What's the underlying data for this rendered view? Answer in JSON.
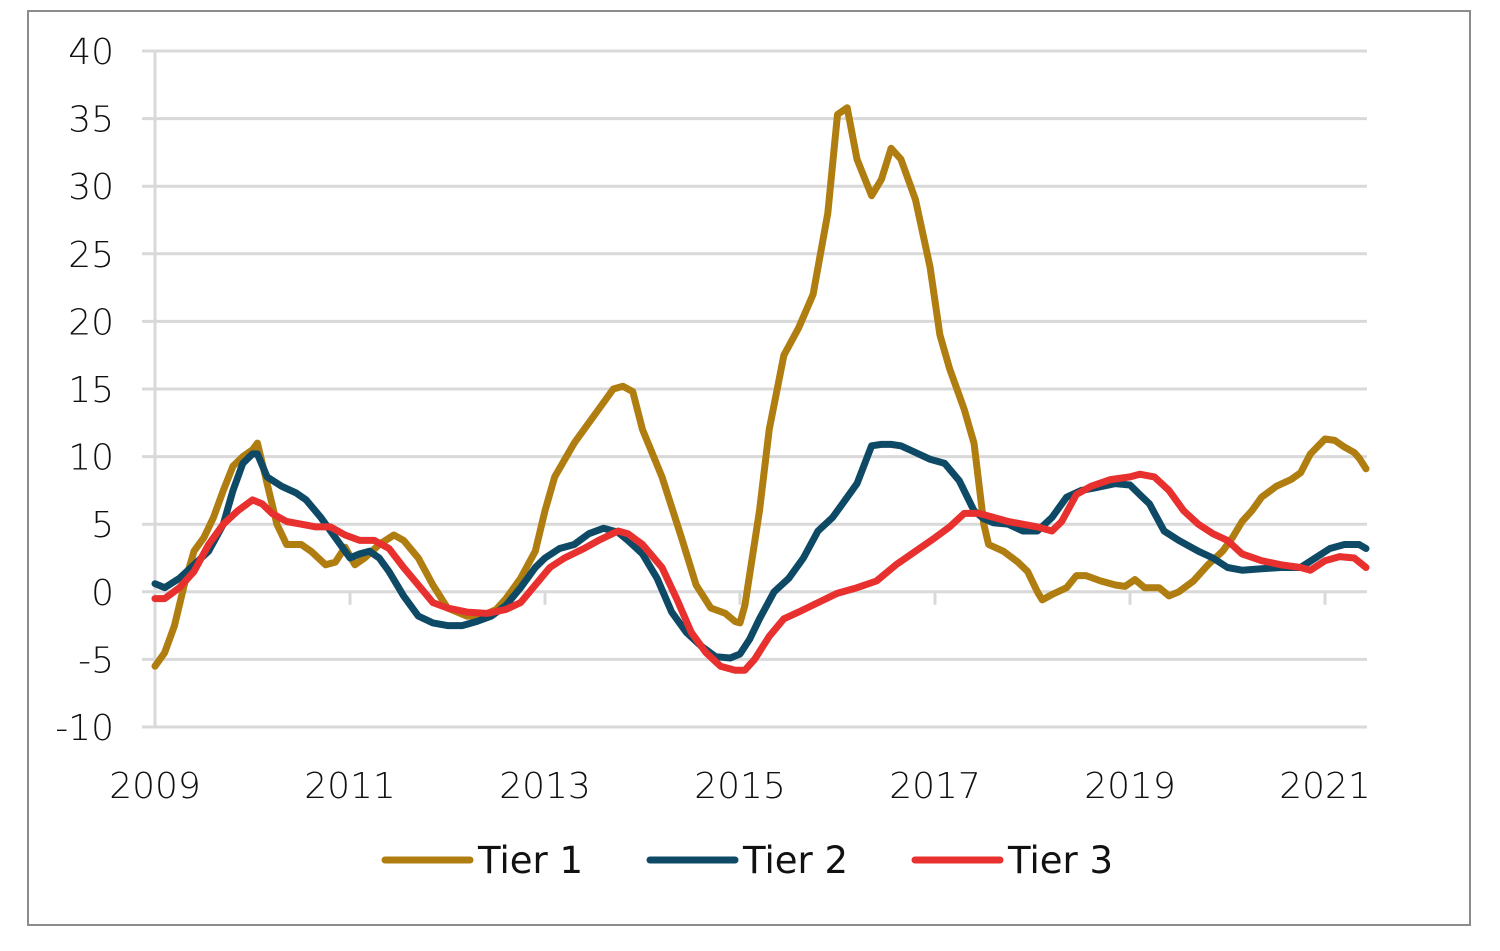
{
  "chart_data": {
    "type": "line",
    "title": "",
    "xlabel": "",
    "ylabel": "",
    "xlim": [
      2009.0,
      2021.42
    ],
    "ylim": [
      -10,
      40
    ],
    "yticks": [
      -10,
      -5,
      0,
      5,
      10,
      15,
      20,
      25,
      30,
      35,
      40
    ],
    "ytick_labels": [
      "-10",
      "-5",
      "0",
      "5",
      "10",
      "15",
      "20",
      "25",
      "30",
      "35",
      "40"
    ],
    "xticks": [
      2009,
      2011,
      2013,
      2015,
      2017,
      2019,
      2021
    ],
    "xtick_labels": [
      "2009",
      "2011",
      "2013",
      "2015",
      "2017",
      "2019",
      "2021"
    ],
    "grid": "horizontal",
    "legend_position": "bottom-center",
    "series": [
      {
        "name": "Tier 1",
        "color": "#B07D10",
        "x": [
          2009.0,
          2009.1,
          2009.2,
          2009.3,
          2009.4,
          2009.5,
          2009.6,
          2009.7,
          2009.8,
          2009.9,
          2010.0,
          2010.05,
          2010.15,
          2010.25,
          2010.35,
          2010.5,
          2010.6,
          2010.75,
          2010.85,
          2010.95,
          2011.05,
          2011.15,
          2011.3,
          2011.45,
          2011.55,
          2011.7,
          2011.85,
          2012.0,
          2012.2,
          2012.35,
          2012.5,
          2012.6,
          2012.75,
          2012.9,
          2013.0,
          2013.1,
          2013.3,
          2013.5,
          2013.7,
          2013.8,
          2013.9,
          2014.0,
          2014.2,
          2014.4,
          2014.55,
          2014.7,
          2014.85,
          2014.95,
          2015.0,
          2015.05,
          2015.2,
          2015.3,
          2015.45,
          2015.6,
          2015.75,
          2015.9,
          2016.0,
          2016.1,
          2016.2,
          2016.35,
          2016.45,
          2016.55,
          2016.65,
          2016.8,
          2016.95,
          2017.05,
          2017.15,
          2017.3,
          2017.4,
          2017.5,
          2017.55,
          2017.7,
          2017.85,
          2017.95,
          2018.05,
          2018.1,
          2018.2,
          2018.35,
          2018.45,
          2018.55,
          2018.7,
          2018.85,
          2018.95,
          2019.05,
          2019.15,
          2019.3,
          2019.4,
          2019.5,
          2019.65,
          2019.8,
          2019.95,
          2020.05,
          2020.15,
          2020.25,
          2020.35,
          2020.5,
          2020.65,
          2020.75,
          2020.85,
          2021.0,
          2021.1,
          2021.2,
          2021.3,
          2021.35,
          2021.42
        ],
        "values": [
          -5.5,
          -4.5,
          -2.5,
          0.5,
          3.0,
          4.0,
          5.5,
          7.5,
          9.3,
          10.0,
          10.5,
          11.0,
          8.0,
          5.0,
          3.5,
          3.5,
          3.0,
          2.0,
          2.2,
          3.3,
          2.0,
          2.5,
          3.5,
          4.2,
          3.8,
          2.5,
          0.5,
          -1.2,
          -1.8,
          -1.8,
          -1.3,
          -0.5,
          1.0,
          3.0,
          6.0,
          8.5,
          11.0,
          13.0,
          15.0,
          15.2,
          14.8,
          12.0,
          8.5,
          4.0,
          0.5,
          -1.2,
          -1.6,
          -2.2,
          -2.3,
          -1.0,
          6.0,
          12.0,
          17.5,
          19.5,
          22.0,
          28.0,
          35.3,
          35.8,
          32.0,
          29.3,
          30.5,
          32.8,
          32.0,
          29.0,
          24.0,
          19.0,
          16.5,
          13.5,
          11.0,
          5.0,
          3.5,
          3.0,
          2.2,
          1.5,
          0.0,
          -0.6,
          -0.2,
          0.3,
          1.2,
          1.2,
          0.8,
          0.5,
          0.4,
          0.9,
          0.3,
          0.3,
          -0.3,
          0.0,
          0.8,
          2.0,
          3.0,
          4.0,
          5.2,
          6.0,
          7.0,
          7.8,
          8.3,
          8.8,
          10.2,
          11.3,
          11.2,
          10.7,
          10.3,
          9.9,
          9.1
        ]
      },
      {
        "name": "Tier 2",
        "color": "#0E4A66",
        "x": [
          2009.0,
          2009.1,
          2009.25,
          2009.4,
          2009.55,
          2009.7,
          2009.8,
          2009.9,
          2010.0,
          2010.05,
          2010.15,
          2010.3,
          2010.45,
          2010.55,
          2010.7,
          2010.85,
          2011.0,
          2011.1,
          2011.2,
          2011.3,
          2011.4,
          2011.55,
          2011.7,
          2011.85,
          2012.0,
          2012.15,
          2012.3,
          2012.45,
          2012.6,
          2012.75,
          2012.9,
          2013.0,
          2013.15,
          2013.3,
          2013.45,
          2013.6,
          2013.75,
          2013.85,
          2014.0,
          2014.15,
          2014.3,
          2014.45,
          2014.6,
          2014.75,
          2014.9,
          2015.0,
          2015.1,
          2015.2,
          2015.35,
          2015.5,
          2015.65,
          2015.8,
          2015.95,
          2016.05,
          2016.2,
          2016.35,
          2016.45,
          2016.55,
          2016.65,
          2016.8,
          2016.95,
          2017.1,
          2017.25,
          2017.4,
          2017.5,
          2017.6,
          2017.75,
          2017.9,
          2018.05,
          2018.2,
          2018.35,
          2018.5,
          2018.65,
          2018.85,
          2019.0,
          2019.1,
          2019.2,
          2019.35,
          2019.5,
          2019.7,
          2019.85,
          2020.0,
          2020.15,
          2020.35,
          2020.55,
          2020.75,
          2020.9,
          2021.05,
          2021.2,
          2021.35,
          2021.42
        ],
        "values": [
          0.6,
          0.3,
          1.0,
          2.0,
          3.0,
          5.0,
          7.5,
          9.5,
          10.2,
          10.2,
          8.5,
          7.8,
          7.3,
          6.8,
          5.5,
          4.0,
          2.5,
          2.8,
          3.0,
          2.5,
          1.5,
          -0.3,
          -1.8,
          -2.3,
          -2.5,
          -2.5,
          -2.2,
          -1.8,
          -1.0,
          0.3,
          1.8,
          2.5,
          3.2,
          3.5,
          4.3,
          4.7,
          4.4,
          3.8,
          2.8,
          1.0,
          -1.5,
          -3.0,
          -4.0,
          -4.8,
          -4.9,
          -4.6,
          -3.5,
          -2.0,
          0.0,
          1.0,
          2.5,
          4.5,
          5.5,
          6.5,
          8.0,
          10.8,
          10.9,
          10.9,
          10.8,
          10.3,
          9.8,
          9.5,
          8.2,
          6.0,
          5.4,
          5.1,
          5.0,
          4.5,
          4.5,
          5.5,
          7.0,
          7.5,
          7.7,
          8.0,
          7.9,
          7.2,
          6.5,
          4.5,
          3.8,
          3.0,
          2.5,
          1.8,
          1.6,
          1.7,
          1.8,
          1.8,
          2.5,
          3.2,
          3.5,
          3.5,
          3.2
        ]
      },
      {
        "name": "Tier 3",
        "color": "#E8302E",
        "x": [
          2009.0,
          2009.1,
          2009.25,
          2009.4,
          2009.55,
          2009.7,
          2009.85,
          2010.0,
          2010.1,
          2010.2,
          2010.35,
          2010.5,
          2010.65,
          2010.8,
          2010.95,
          2011.1,
          2011.25,
          2011.4,
          2011.55,
          2011.7,
          2011.85,
          2012.0,
          2012.2,
          2012.4,
          2012.6,
          2012.75,
          2012.9,
          2013.05,
          2013.2,
          2013.4,
          2013.55,
          2013.75,
          2013.85,
          2014.0,
          2014.2,
          2014.35,
          2014.5,
          2014.65,
          2014.8,
          2014.95,
          2015.05,
          2015.15,
          2015.3,
          2015.45,
          2015.6,
          2015.8,
          2016.0,
          2016.2,
          2016.4,
          2016.6,
          2016.8,
          2017.0,
          2017.15,
          2017.3,
          2017.45,
          2017.6,
          2017.75,
          2017.9,
          2018.05,
          2018.2,
          2018.3,
          2018.45,
          2018.6,
          2018.8,
          2019.0,
          2019.1,
          2019.25,
          2019.4,
          2019.55,
          2019.7,
          2019.85,
          2020.0,
          2020.15,
          2020.35,
          2020.55,
          2020.75,
          2020.85,
          2021.0,
          2021.15,
          2021.3,
          2021.42
        ],
        "values": [
          -0.5,
          -0.5,
          0.3,
          1.5,
          3.5,
          5.0,
          6.0,
          6.8,
          6.5,
          5.8,
          5.2,
          5.0,
          4.8,
          4.8,
          4.2,
          3.8,
          3.8,
          3.2,
          1.8,
          0.5,
          -0.8,
          -1.2,
          -1.5,
          -1.6,
          -1.3,
          -0.8,
          0.5,
          1.8,
          2.5,
          3.2,
          3.8,
          4.5,
          4.3,
          3.5,
          1.8,
          -0.5,
          -3.0,
          -4.5,
          -5.5,
          -5.8,
          -5.8,
          -5.0,
          -3.3,
          -2.0,
          -1.5,
          -0.8,
          -0.1,
          0.3,
          0.8,
          2.0,
          3.0,
          4.0,
          4.8,
          5.8,
          5.8,
          5.5,
          5.2,
          5.0,
          4.8,
          4.5,
          5.2,
          7.2,
          7.8,
          8.3,
          8.5,
          8.7,
          8.5,
          7.5,
          6.0,
          5.0,
          4.3,
          3.8,
          2.8,
          2.3,
          2.0,
          1.8,
          1.6,
          2.3,
          2.6,
          2.5,
          1.8
        ]
      }
    ]
  }
}
